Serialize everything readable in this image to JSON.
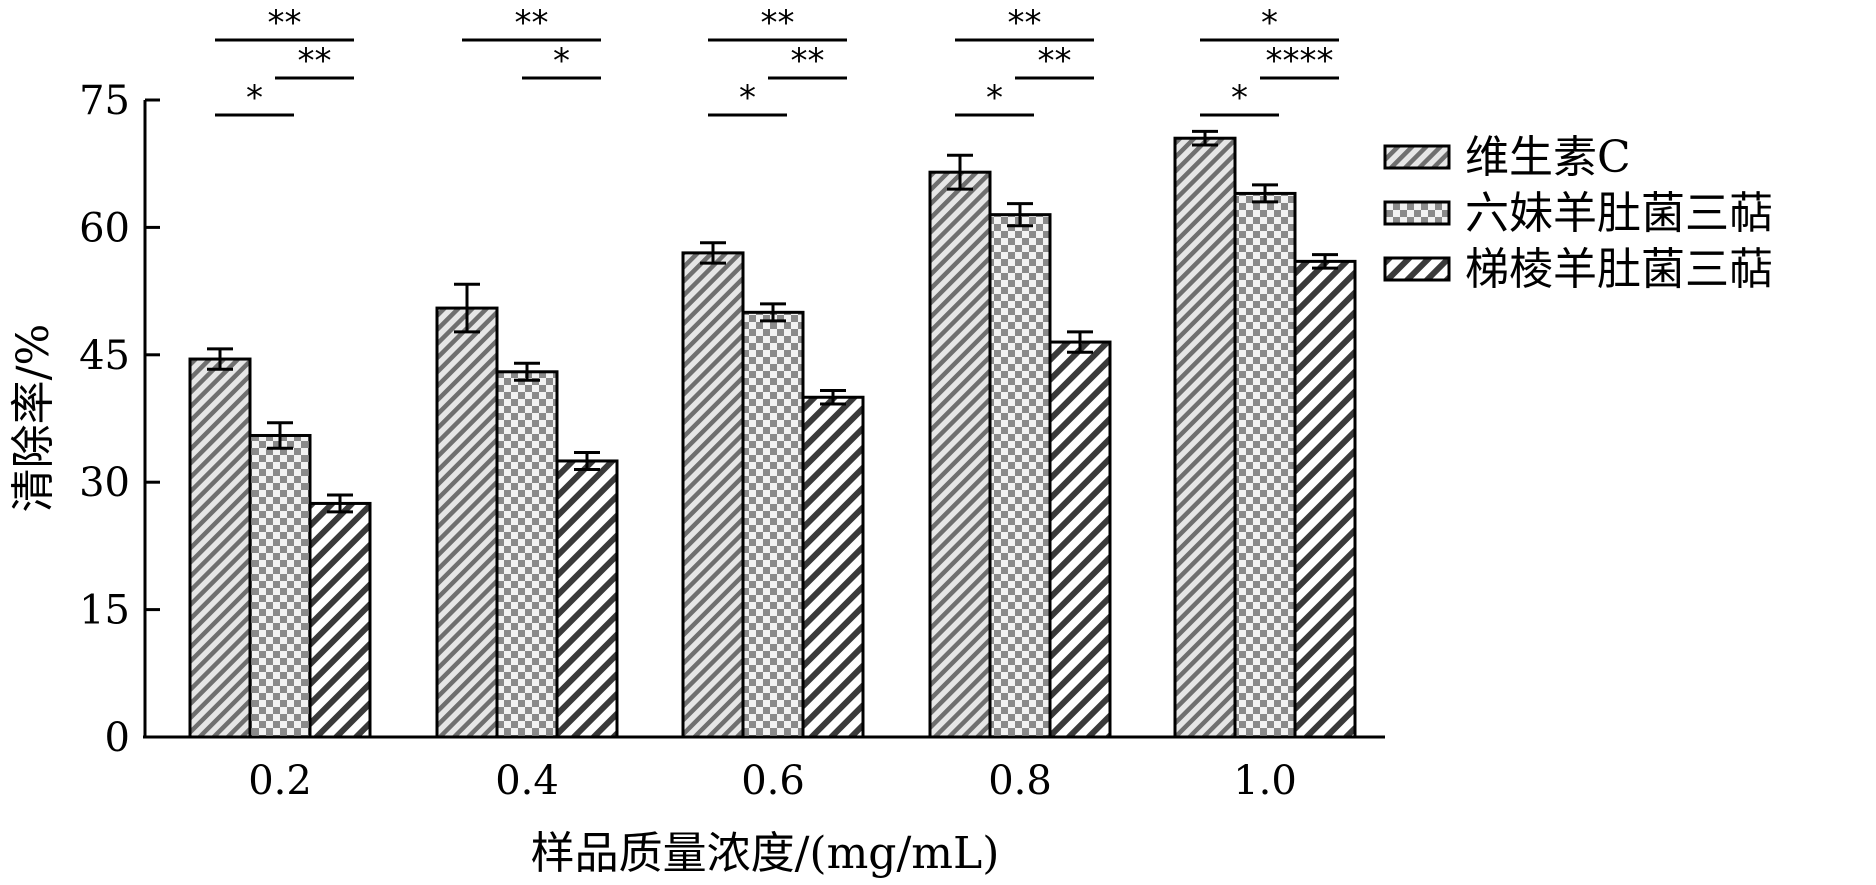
{
  "chart_data": {
    "type": "bar",
    "xlabel": "样品质量浓度/(mg/mL)",
    "ylabel": "清除率/%",
    "ylim": [
      0,
      75
    ],
    "yticks": [
      0,
      15,
      30,
      45,
      60,
      75
    ],
    "categories": [
      "0.2",
      "0.4",
      "0.6",
      "0.8",
      "1.0"
    ],
    "legend_position": "right",
    "series": [
      {
        "name": "维生素C",
        "pattern": "diagonal-dense",
        "values": [
          44.5,
          50.5,
          57.0,
          66.5,
          70.5
        ],
        "errors": [
          1.2,
          2.8,
          1.2,
          2.0,
          0.8
        ]
      },
      {
        "name": "六妹羊肚菌三萜",
        "pattern": "checker",
        "values": [
          35.5,
          43.0,
          50.0,
          61.5,
          64.0
        ],
        "errors": [
          1.5,
          1.0,
          1.0,
          1.3,
          1.0
        ]
      },
      {
        "name": "梯棱羊肚菌三萜",
        "pattern": "diagonal-bold",
        "values": [
          27.5,
          32.5,
          40.0,
          46.5,
          56.0
        ],
        "errors": [
          1.0,
          1.0,
          0.8,
          1.2,
          0.8
        ]
      }
    ],
    "significance": [
      {
        "group": 0,
        "comparisons": [
          {
            "pair": [
              0,
              2
            ],
            "label": "**",
            "level": 3
          },
          {
            "pair": [
              1,
              2
            ],
            "label": "**",
            "level": 2
          },
          {
            "pair": [
              0,
              1
            ],
            "label": "*",
            "level": 1
          }
        ]
      },
      {
        "group": 1,
        "comparisons": [
          {
            "pair": [
              0,
              2
            ],
            "label": "**",
            "level": 3
          },
          {
            "pair": [
              1,
              2
            ],
            "label": "*",
            "level": 2
          }
        ]
      },
      {
        "group": 2,
        "comparisons": [
          {
            "pair": [
              0,
              2
            ],
            "label": "**",
            "level": 3
          },
          {
            "pair": [
              1,
              2
            ],
            "label": "**",
            "level": 2
          },
          {
            "pair": [
              0,
              1
            ],
            "label": "*",
            "level": 1
          }
        ]
      },
      {
        "group": 3,
        "comparisons": [
          {
            "pair": [
              0,
              2
            ],
            "label": "**",
            "level": 3
          },
          {
            "pair": [
              1,
              2
            ],
            "label": "**",
            "level": 2
          },
          {
            "pair": [
              0,
              1
            ],
            "label": "*",
            "level": 1
          }
        ]
      },
      {
        "group": 4,
        "comparisons": [
          {
            "pair": [
              0,
              2
            ],
            "label": "*",
            "level": 3
          },
          {
            "pair": [
              1,
              2
            ],
            "label": "****",
            "level": 2
          },
          {
            "pair": [
              0,
              1
            ],
            "label": "*",
            "level": 1
          }
        ]
      }
    ]
  }
}
